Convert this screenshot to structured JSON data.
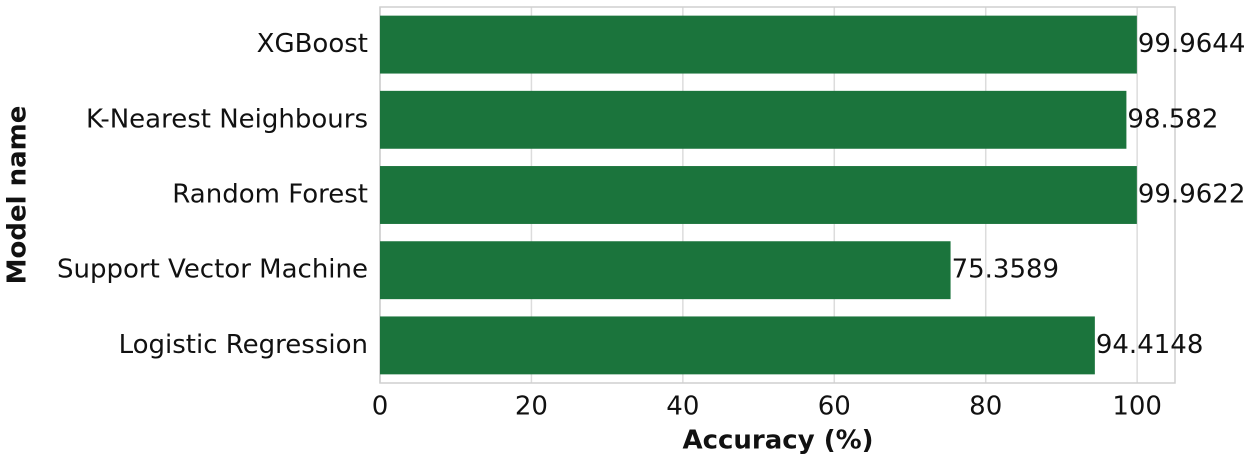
{
  "chart_data": {
    "type": "barh",
    "xlabel": "Accuracy (%)",
    "ylabel": "Model name",
    "categories": [
      "XGBoost",
      "K-Nearest Neighbours",
      "Random Forest",
      "Support Vector Machine",
      "Logistic Regression"
    ],
    "values": [
      99.9644,
      98.582,
      99.9622,
      75.3589,
      94.4148
    ],
    "color": "#1b743c",
    "xlim": [
      0,
      105
    ],
    "xticks": [
      0,
      20,
      40,
      60,
      80,
      100
    ],
    "grid": true
  }
}
